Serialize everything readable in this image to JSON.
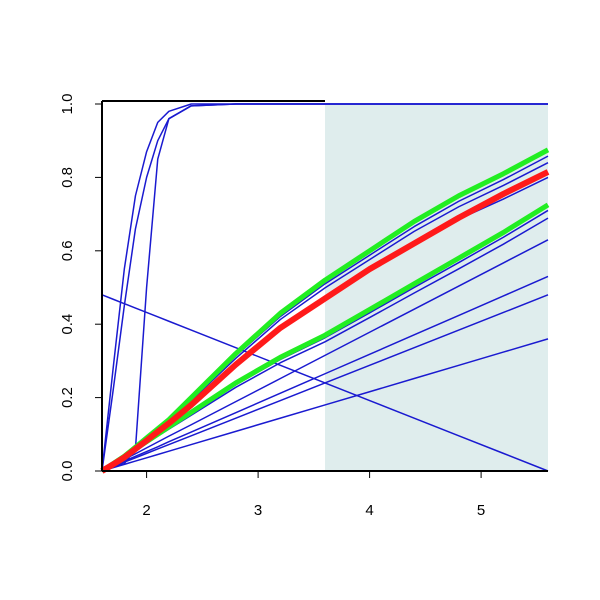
{
  "chart_data": {
    "type": "line",
    "x": [
      1.6,
      1.7,
      1.8,
      1.9,
      2.0,
      2.1,
      2.2,
      2.4,
      2.8,
      3.2,
      3.6,
      4.0,
      4.4,
      4.8,
      5.2,
      5.6
    ],
    "shaded_region": {
      "xlim": [
        3.6,
        5.6
      ],
      "color": "#dfeded"
    },
    "series": [
      {
        "color": "#1a1ad0",
        "linewidth": 1.5,
        "values": [
          0,
          0.28,
          0.55,
          0.75,
          0.87,
          0.95,
          0.98,
          1,
          1,
          1,
          1,
          1,
          1,
          1,
          1,
          1
        ]
      },
      {
        "color": "#1a1ad0",
        "linewidth": 1.5,
        "values": [
          0,
          0.22,
          0.45,
          0.66,
          0.8,
          0.9,
          0.96,
          0.995,
          1,
          1,
          1,
          1,
          1,
          1,
          1,
          1
        ]
      },
      {
        "color": "#1a1ad0",
        "linewidth": 1.5,
        "values": [
          0,
          0.01,
          0.02,
          0.06,
          0.5,
          0.85,
          0.96,
          0.995,
          1,
          1,
          1,
          1,
          1,
          1,
          1,
          1
        ]
      },
      {
        "color": "#1a1ad0",
        "linewidth": 1.5,
        "values": [
          0.48,
          0.468,
          0.456,
          0.444,
          0.432,
          0.42,
          0.408,
          0.384,
          0.336,
          0.288,
          0.24,
          0.192,
          0.144,
          0.096,
          0.048,
          0
        ]
      },
      {
        "color": "#1a1ad0",
        "linewidth": 1.5,
        "values": [
          0,
          0.009,
          0.018,
          0.027,
          0.036,
          0.045,
          0.054,
          0.072,
          0.108,
          0.144,
          0.18,
          0.216,
          0.252,
          0.288,
          0.324,
          0.36
        ]
      },
      {
        "color": "#1a1ad0",
        "linewidth": 1.5,
        "values": [
          0,
          0.012,
          0.024,
          0.036,
          0.048,
          0.06,
          0.072,
          0.096,
          0.144,
          0.192,
          0.24,
          0.288,
          0.336,
          0.384,
          0.432,
          0.48
        ]
      },
      {
        "color": "#1a1ad0",
        "linewidth": 1.5,
        "values": [
          0,
          0.013,
          0.027,
          0.04,
          0.053,
          0.066,
          0.08,
          0.106,
          0.159,
          0.212,
          0.265,
          0.318,
          0.371,
          0.424,
          0.477,
          0.53
        ]
      },
      {
        "color": "#1a1ad0",
        "linewidth": 1.5,
        "values": [
          0,
          0.016,
          0.032,
          0.047,
          0.063,
          0.079,
          0.095,
          0.126,
          0.189,
          0.252,
          0.315,
          0.378,
          0.441,
          0.504,
          0.567,
          0.63
        ]
      },
      {
        "color": "#1a1ad0",
        "linewidth": 1.5,
        "values": [
          0,
          0.02,
          0.039,
          0.064,
          0.088,
          0.113,
          0.137,
          0.196,
          0.314,
          0.421,
          0.51,
          0.588,
          0.666,
          0.735,
          0.794,
          0.858
        ]
      },
      {
        "color": "#1a1ad0",
        "linewidth": 1.5,
        "values": [
          0,
          0.019,
          0.038,
          0.062,
          0.086,
          0.11,
          0.134,
          0.192,
          0.307,
          0.413,
          0.499,
          0.576,
          0.653,
          0.72,
          0.778,
          0.84
        ]
      },
      {
        "color": "#1a1ad0",
        "linewidth": 1.5,
        "values": [
          0,
          0.018,
          0.037,
          0.059,
          0.082,
          0.105,
          0.128,
          0.183,
          0.293,
          0.393,
          0.476,
          0.549,
          0.622,
          0.686,
          0.741,
          0.8
        ]
      },
      {
        "color": "#1a1ad0",
        "linewidth": 1.5,
        "values": [
          0,
          0.02,
          0.039,
          0.059,
          0.078,
          0.098,
          0.118,
          0.157,
          0.235,
          0.304,
          0.363,
          0.431,
          0.5,
          0.568,
          0.637,
          0.71
        ]
      },
      {
        "color": "#1a1ad0",
        "linewidth": 1.5,
        "values": [
          0,
          0.019,
          0.038,
          0.057,
          0.076,
          0.095,
          0.114,
          0.152,
          0.228,
          0.295,
          0.352,
          0.418,
          0.485,
          0.551,
          0.618,
          0.689
        ]
      },
      {
        "color": "#22ee22",
        "linewidth": 5,
        "values": [
          0,
          0.02,
          0.04,
          0.065,
          0.09,
          0.115,
          0.14,
          0.2,
          0.32,
          0.43,
          0.52,
          0.6,
          0.68,
          0.75,
          0.81,
          0.875
        ]
      },
      {
        "color": "#22ee22",
        "linewidth": 5,
        "values": [
          0,
          0.02,
          0.04,
          0.06,
          0.08,
          0.1,
          0.12,
          0.16,
          0.24,
          0.31,
          0.37,
          0.44,
          0.51,
          0.58,
          0.65,
          0.725
        ]
      },
      {
        "color": "#ff1a1a",
        "linewidth": 6,
        "values": [
          0,
          0.018,
          0.037,
          0.06,
          0.083,
          0.107,
          0.13,
          0.18,
          0.29,
          0.39,
          0.47,
          0.55,
          0.62,
          0.69,
          0.755,
          0.815
        ]
      }
    ],
    "xlim": [
      1.6,
      5.6
    ],
    "ylim": [
      0,
      1
    ],
    "xticks": [
      2,
      3,
      4,
      5
    ],
    "yticks": [
      {
        "value": 0,
        "label": "0.0"
      },
      0.2,
      0.4,
      0.6,
      0.8,
      {
        "value": 1,
        "label": "1.0"
      }
    ]
  }
}
